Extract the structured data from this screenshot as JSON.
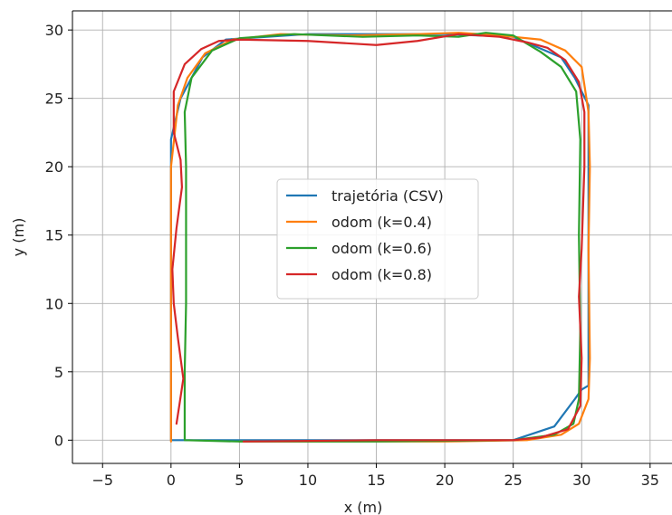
{
  "chart_data": {
    "type": "line",
    "title": "",
    "xlabel": "x (m)",
    "ylabel": "y (m)",
    "xlim": [
      -7.2,
      36.6
    ],
    "ylim": [
      -1.7,
      31.4
    ],
    "xticks": [
      -5,
      0,
      5,
      10,
      15,
      20,
      25,
      30,
      35
    ],
    "yticks": [
      0,
      5,
      10,
      15,
      20,
      25,
      30
    ],
    "grid": true,
    "legend_position": "center",
    "series": [
      {
        "name": "trajetória (CSV)",
        "color": "#1f77b4",
        "points": [
          [
            0.0,
            0.0
          ],
          [
            0.0,
            22.0
          ],
          [
            0.7,
            25.0
          ],
          [
            2.3,
            28.0
          ],
          [
            4.0,
            29.3
          ],
          [
            10.0,
            29.7
          ],
          [
            20.0,
            29.7
          ],
          [
            25.0,
            29.5
          ],
          [
            28.5,
            28.0
          ],
          [
            29.5,
            26.5
          ],
          [
            30.5,
            24.5
          ],
          [
            30.5,
            20.0
          ],
          [
            30.5,
            10.0
          ],
          [
            30.5,
            4.0
          ],
          [
            30.0,
            3.7
          ],
          [
            29.5,
            3.0
          ],
          [
            28.0,
            1.0
          ],
          [
            25.0,
            0.0
          ],
          [
            10.0,
            0.0
          ],
          [
            0.0,
            0.0
          ]
        ]
      },
      {
        "name": "odom (k=0.4)",
        "color": "#ff7f0e",
        "points": [
          [
            0.0,
            -0.1
          ],
          [
            0.0,
            10.0
          ],
          [
            0.0,
            20.0
          ],
          [
            0.5,
            24.5
          ],
          [
            1.2,
            26.5
          ],
          [
            2.5,
            28.3
          ],
          [
            4.5,
            29.3
          ],
          [
            8.0,
            29.7
          ],
          [
            13.0,
            29.6
          ],
          [
            18.0,
            29.7
          ],
          [
            21.0,
            29.8
          ],
          [
            24.0,
            29.6
          ],
          [
            27.0,
            29.3
          ],
          [
            28.8,
            28.5
          ],
          [
            30.0,
            27.3
          ],
          [
            30.5,
            24.0
          ],
          [
            30.6,
            20.0
          ],
          [
            30.5,
            14.0
          ],
          [
            30.6,
            6.0
          ],
          [
            30.5,
            3.0
          ],
          [
            29.8,
            1.2
          ],
          [
            28.5,
            0.4
          ],
          [
            26.0,
            0.0
          ],
          [
            20.0,
            -0.1
          ],
          [
            10.0,
            -0.1
          ],
          [
            5.0,
            -0.1
          ]
        ]
      },
      {
        "name": "odom (k=0.6)",
        "color": "#2ca02c",
        "points": [
          [
            1.0,
            0.0
          ],
          [
            1.0,
            5.0
          ],
          [
            1.1,
            10.0
          ],
          [
            1.1,
            15.0
          ],
          [
            1.1,
            20.0
          ],
          [
            1.0,
            24.0
          ],
          [
            1.5,
            26.5
          ],
          [
            3.0,
            28.5
          ],
          [
            5.0,
            29.4
          ],
          [
            9.0,
            29.7
          ],
          [
            14.0,
            29.5
          ],
          [
            18.0,
            29.6
          ],
          [
            21.0,
            29.5
          ],
          [
            23.0,
            29.8
          ],
          [
            25.0,
            29.6
          ],
          [
            27.0,
            28.4
          ],
          [
            28.5,
            27.3
          ],
          [
            29.6,
            25.5
          ],
          [
            29.9,
            22.0
          ],
          [
            29.8,
            15.0
          ],
          [
            29.9,
            8.0
          ],
          [
            29.8,
            3.0
          ],
          [
            29.4,
            1.2
          ],
          [
            28.0,
            0.4
          ],
          [
            25.0,
            0.0
          ],
          [
            15.0,
            -0.1
          ],
          [
            5.0,
            -0.1
          ],
          [
            1.0,
            0.0
          ]
        ]
      },
      {
        "name": "odom (k=0.8)",
        "color": "#d62728",
        "points": [
          [
            0.4,
            1.2
          ],
          [
            0.6,
            2.5
          ],
          [
            0.9,
            4.5
          ],
          [
            0.5,
            7.5
          ],
          [
            0.2,
            10.0
          ],
          [
            0.1,
            12.5
          ],
          [
            0.4,
            15.5
          ],
          [
            0.8,
            18.5
          ],
          [
            0.7,
            20.5
          ],
          [
            0.2,
            22.5
          ],
          [
            0.2,
            25.5
          ],
          [
            1.0,
            27.5
          ],
          [
            2.2,
            28.6
          ],
          [
            3.5,
            29.2
          ],
          [
            5.0,
            29.3
          ],
          [
            10.0,
            29.2
          ],
          [
            15.0,
            28.9
          ],
          [
            18.0,
            29.2
          ],
          [
            21.0,
            29.7
          ],
          [
            24.0,
            29.5
          ],
          [
            26.0,
            29.1
          ],
          [
            27.5,
            28.7
          ],
          [
            28.8,
            27.8
          ],
          [
            29.8,
            26.2
          ],
          [
            30.2,
            24.0
          ],
          [
            30.2,
            20.0
          ],
          [
            30.0,
            14.0
          ],
          [
            29.8,
            10.5
          ],
          [
            30.0,
            6.0
          ],
          [
            29.9,
            2.5
          ],
          [
            29.0,
            0.8
          ],
          [
            27.0,
            0.2
          ],
          [
            25.0,
            0.0
          ],
          [
            15.0,
            0.0
          ],
          [
            5.3,
            -0.1
          ]
        ]
      }
    ]
  }
}
